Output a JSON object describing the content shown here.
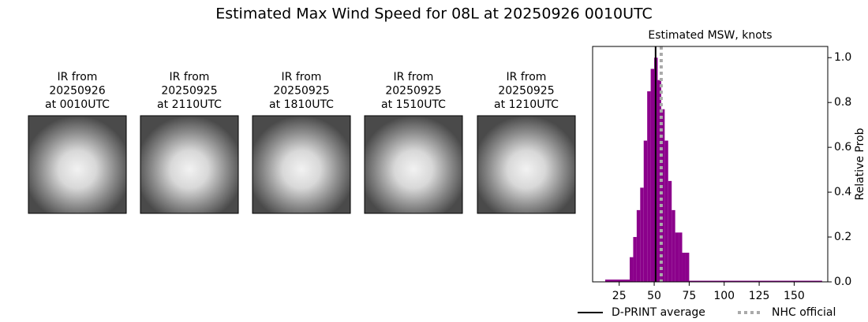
{
  "title": "Estimated Max Wind Speed for 08L at 20250926 0010UTC",
  "panels": [
    {
      "label": [
        "IR from",
        "20250926",
        "at 0010UTC"
      ]
    },
    {
      "label": [
        "IR from",
        "20250925",
        "at 2110UTC"
      ]
    },
    {
      "label": [
        "IR from",
        "20250925",
        "at 1810UTC"
      ]
    },
    {
      "label": [
        "IR from",
        "20250925",
        "at 1510UTC"
      ]
    },
    {
      "label": [
        "IR from",
        "20250925",
        "at 1210UTC"
      ]
    }
  ],
  "chart_data": {
    "type": "histogram",
    "title": "Estimated MSW, knots",
    "ylabel": "Relative Prob",
    "bins": [
      15,
      32.5,
      35,
      37.5,
      40,
      42.5,
      45,
      47.5,
      50,
      52.5,
      55,
      57.5,
      60,
      62.5,
      65,
      67.5,
      70,
      72.5,
      75,
      170
    ],
    "values": [
      0.01,
      0.11,
      0.2,
      0.32,
      0.42,
      0.63,
      0.85,
      0.95,
      1.0,
      0.9,
      0.77,
      0.63,
      0.45,
      0.32,
      0.22,
      0.22,
      0.13,
      0.13,
      0.005
    ],
    "color": "#8b008b",
    "xlim": [
      6,
      174
    ],
    "xticks": [
      25,
      50,
      75,
      100,
      125,
      150
    ],
    "ylim": [
      0,
      1.05
    ],
    "yticks": [
      {
        "value": 0,
        "label": "0.0"
      },
      0.2,
      0.4,
      0.6,
      0.8,
      {
        "value": 1,
        "label": "1.0"
      }
    ],
    "lines": [
      {
        "name": "D-PRINT average",
        "x": 51,
        "color": "#000000",
        "style": "solid"
      },
      {
        "name": "NHC official",
        "x": 55,
        "color": "#aaaaaa",
        "style": "dotted"
      }
    ],
    "legend": "bottom"
  }
}
